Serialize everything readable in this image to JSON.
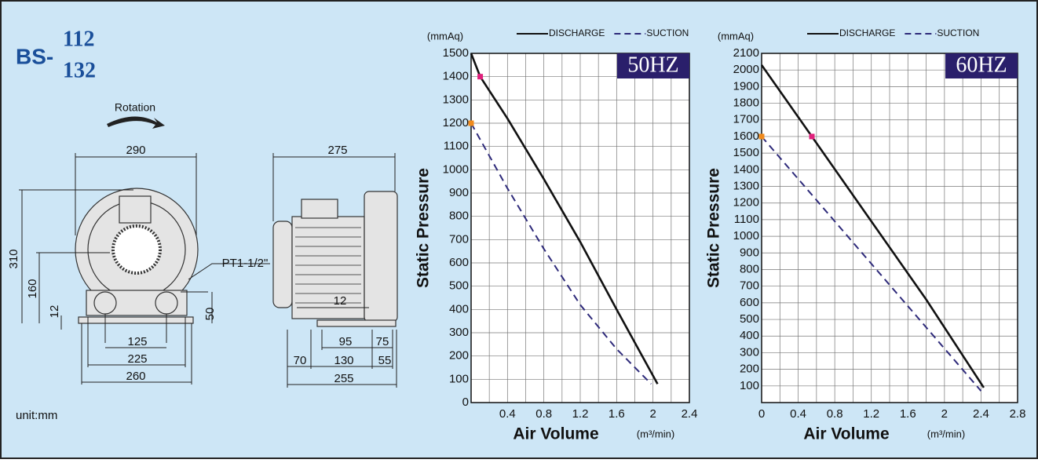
{
  "model": {
    "prefix": "BS-",
    "top": "112",
    "bottom": "132"
  },
  "unit": "unit:mm",
  "drawing": {
    "rotation": "Rotation",
    "front": {
      "width": "290",
      "height": "310",
      "center_height": "160",
      "foot": "12",
      "port": "PT1-1/2\"",
      "port_spacing": "125",
      "foot_spacing": "225",
      "base_width": "260",
      "port_height": "50"
    },
    "side": {
      "length": "275",
      "foot": "12",
      "d95": "95",
      "d75": "75",
      "d70": "70",
      "d130": "130",
      "d55": "55",
      "base_length": "255"
    }
  },
  "chart_data": [
    {
      "type": "line",
      "title": "50HZ",
      "x_label": "Air Volume",
      "x_unit": "(m³/min)",
      "y_label": "Static Pressure",
      "y_unit": "(mmAq)",
      "xlim": [
        0,
        2.4
      ],
      "xticks": [
        0.4,
        0.8,
        1.2,
        1.6,
        2.0,
        2.4
      ],
      "ylim": [
        0,
        1500
      ],
      "yticks": [
        0,
        100,
        200,
        300,
        400,
        500,
        600,
        700,
        800,
        900,
        1000,
        1100,
        1200,
        1300,
        1400,
        1500
      ],
      "grid": true,
      "legend": "top",
      "series": [
        {
          "name": "DISCHARGE",
          "color": "#111111",
          "style": "solid",
          "x": [
            0,
            0.1,
            0.4,
            0.8,
            1.2,
            1.6,
            2.05
          ],
          "values": [
            1500,
            1400,
            1220,
            960,
            690,
            400,
            80
          ],
          "highlight": {
            "x": 0.1,
            "y": 1400,
            "color": "#e0207c"
          }
        },
        {
          "name": "SUCTION",
          "color": "#2e2a7a",
          "style": "dashed",
          "x": [
            0,
            0.4,
            0.8,
            1.2,
            1.6,
            1.98
          ],
          "values": [
            1200,
            920,
            660,
            420,
            230,
            80
          ],
          "highlight": {
            "x": 0,
            "y": 1200,
            "color": "#f08a1c"
          }
        }
      ]
    },
    {
      "type": "line",
      "title": "60HZ",
      "x_label": "Air Volume",
      "x_unit": "(m³/min)",
      "y_label": "Static Pressure",
      "y_unit": "(mmAq)",
      "xlim": [
        0,
        2.8
      ],
      "xticks": [
        0,
        0.4,
        0.8,
        1.2,
        1.6,
        2.0,
        2.4,
        2.8
      ],
      "ylim": [
        0,
        2100
      ],
      "yticks": [
        100,
        200,
        300,
        400,
        500,
        600,
        700,
        800,
        900,
        1000,
        1100,
        1200,
        1300,
        1400,
        1500,
        1600,
        1700,
        1800,
        1900,
        2000,
        2100
      ],
      "grid": true,
      "legend": "top",
      "series": [
        {
          "name": "DISCHARGE",
          "color": "#111111",
          "style": "solid",
          "x": [
            0,
            0.55,
            1.2,
            1.8,
            2.43
          ],
          "values": [
            2030,
            1600,
            1090,
            620,
            90
          ],
          "highlight": {
            "x": 0.55,
            "y": 1600,
            "color": "#e0207c"
          }
        },
        {
          "name": "SUCTION",
          "color": "#2e2a7a",
          "style": "dashed",
          "x": [
            0,
            0.8,
            1.6,
            2.4
          ],
          "values": [
            1600,
            1090,
            580,
            70
          ],
          "highlight": {
            "x": 0,
            "y": 1600,
            "color": "#f08a1c"
          }
        }
      ]
    }
  ]
}
